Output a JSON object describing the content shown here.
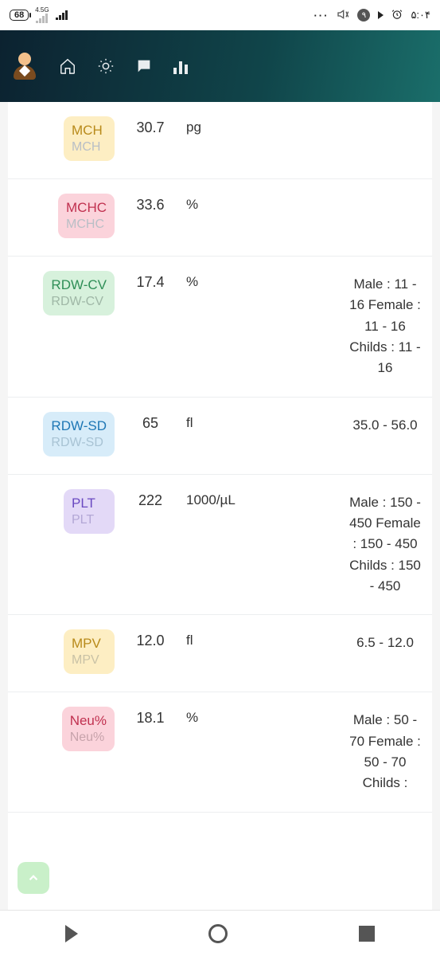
{
  "statusbar": {
    "battery": "68",
    "net_label": "4.5G",
    "notif_badge": "٩",
    "time": "۵:۰۴"
  },
  "rows": [
    {
      "code": "MCH",
      "sub": "MCH",
      "badge_bg": "#fdeec3",
      "title_color": "#b88a1a",
      "sub_color": "#b9bfc6",
      "value": "30.7",
      "unit": "pg",
      "range": ""
    },
    {
      "code": "MCHC",
      "sub": "MCHC",
      "badge_bg": "#fbd3db",
      "title_color": "#c0304f",
      "sub_color": "#b9bfc6",
      "value": "33.6",
      "unit": "%",
      "range": ""
    },
    {
      "code": "RDW-CV",
      "sub": "RDW-CV",
      "badge_bg": "#d7f1dc",
      "title_color": "#2f8f57",
      "sub_color": "#9fb7a6",
      "value": "17.4",
      "unit": "%",
      "range": "Male : 11 - 16 Female : 11 - 16 Childs : 11 - 16"
    },
    {
      "code": "RDW-SD",
      "sub": "RDW-SD",
      "badge_bg": "#d7ecf9",
      "title_color": "#1e77b5",
      "sub_color": "#a8c3d4",
      "value": "65",
      "unit": "fl",
      "range": "35.0 - 56.0"
    },
    {
      "code": "PLT",
      "sub": "PLT",
      "badge_bg": "#e3d9f7",
      "title_color": "#6a49c1",
      "sub_color": "#b3a7d6",
      "value": "222",
      "unit": "1000/µL",
      "range": "Male : 150 - 450 Female : 150 - 450 Childs : 150 - 450"
    },
    {
      "code": "MPV",
      "sub": "MPV",
      "badge_bg": "#fdeec3",
      "title_color": "#b88a1a",
      "sub_color": "#c9c2a6",
      "value": "12.0",
      "unit": "fl",
      "range": "6.5 - 12.0"
    },
    {
      "code": "Neu%",
      "sub": "Neu%",
      "badge_bg": "#fbd3db",
      "title_color": "#c0304f",
      "sub_color": "#c7a3ab",
      "value": "18.1",
      "unit": "%",
      "range": "Male : 50 - 70 Female : 50 - 70 Childs :"
    }
  ]
}
